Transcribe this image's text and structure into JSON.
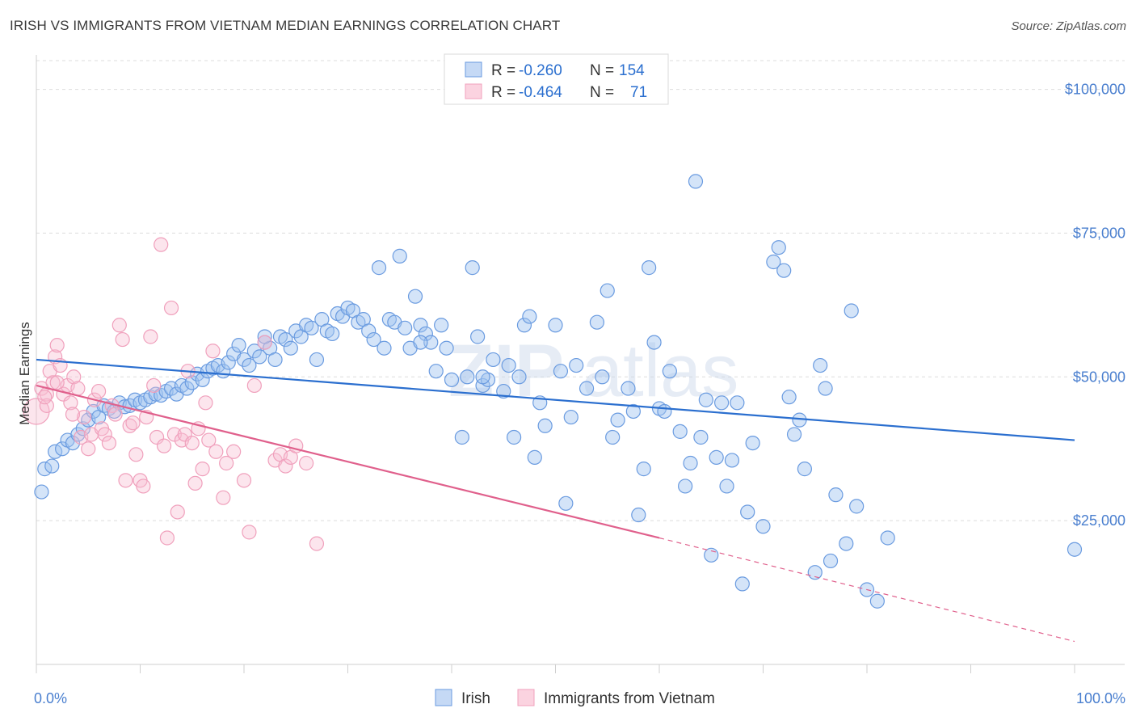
{
  "header": {
    "title": "IRISH VS IMMIGRANTS FROM VIETNAM MEDIAN EARNINGS CORRELATION CHART",
    "source": "Source: ZipAtlas.com"
  },
  "watermark": {
    "part1": "ZIP",
    "part2": "atlas"
  },
  "legend": {
    "rows": [
      {
        "r_label": "R = ",
        "r_value": "-0.260",
        "n_label": "N = ",
        "n_value": "154"
      },
      {
        "r_label": "R = ",
        "r_value": "-0.464",
        "n_label": "N = ",
        "n_value": "71"
      }
    ]
  },
  "chart_data": {
    "type": "scatter",
    "title": "IRISH VS IMMIGRANTS FROM VIETNAM MEDIAN EARNINGS CORRELATION CHART",
    "xlabel": "",
    "ylabel": "Median Earnings",
    "xlim": [
      0,
      100
    ],
    "ylim": [
      0,
      105000
    ],
    "x_tick_labels": [
      "0.0%",
      "100.0%"
    ],
    "y_ticks": [
      25000,
      50000,
      75000,
      100000
    ],
    "y_tick_labels": [
      "$25,000",
      "$50,000",
      "$75,000",
      "$100,000"
    ],
    "grid": true,
    "legend_position": "top-center",
    "colors": {
      "irish": "#6a9be0",
      "irish_line": "#2b6fcf",
      "vietnam": "#f0a0bc",
      "vietnam_line": "#e0608c",
      "text_blue": "#2b6fcf"
    },
    "series": [
      {
        "name": "Irish",
        "R": -0.26,
        "N": 154,
        "trend": {
          "x": [
            0,
            100
          ],
          "y": [
            53000,
            39000
          ]
        },
        "points": [
          [
            0.5,
            30000
          ],
          [
            0.8,
            34000
          ],
          [
            1.5,
            34500
          ],
          [
            1.8,
            37000
          ],
          [
            2.5,
            37500
          ],
          [
            3,
            39000
          ],
          [
            3.5,
            38500
          ],
          [
            4,
            40000
          ],
          [
            4.5,
            41000
          ],
          [
            5,
            42500
          ],
          [
            5.5,
            44000
          ],
          [
            6,
            43000
          ],
          [
            6.5,
            45000
          ],
          [
            7,
            44500
          ],
          [
            7.5,
            44000
          ],
          [
            8,
            45500
          ],
          [
            8.5,
            44800
          ],
          [
            9,
            45000
          ],
          [
            9.5,
            46000
          ],
          [
            10,
            45500
          ],
          [
            10.5,
            46000
          ],
          [
            11,
            46500
          ],
          [
            11.5,
            47000
          ],
          [
            12,
            46800
          ],
          [
            12.5,
            47500
          ],
          [
            13,
            48000
          ],
          [
            13.5,
            47000
          ],
          [
            14,
            48500
          ],
          [
            14.5,
            48000
          ],
          [
            15,
            49000
          ],
          [
            15.5,
            50500
          ],
          [
            16,
            49500
          ],
          [
            16.5,
            51000
          ],
          [
            17,
            51500
          ],
          [
            17.5,
            52000
          ],
          [
            18,
            51000
          ],
          [
            18.5,
            52500
          ],
          [
            19,
            54000
          ],
          [
            19.5,
            55500
          ],
          [
            20,
            53000
          ],
          [
            20.5,
            52000
          ],
          [
            21,
            54500
          ],
          [
            21.5,
            53500
          ],
          [
            22,
            56000
          ],
          [
            22.5,
            55000
          ],
          [
            23,
            53000
          ],
          [
            23.5,
            57000
          ],
          [
            24,
            56500
          ],
          [
            24.5,
            55000
          ],
          [
            25,
            58000
          ],
          [
            25.5,
            57000
          ],
          [
            26,
            59000
          ],
          [
            26.5,
            58500
          ],
          [
            27,
            53000
          ],
          [
            27.5,
            60000
          ],
          [
            28,
            58000
          ],
          [
            28.5,
            57500
          ],
          [
            29,
            61000
          ],
          [
            29.5,
            60500
          ],
          [
            30,
            62000
          ],
          [
            30.5,
            61500
          ],
          [
            31,
            59500
          ],
          [
            31.5,
            60000
          ],
          [
            32,
            58000
          ],
          [
            32.5,
            56500
          ],
          [
            33,
            69000
          ],
          [
            33.5,
            55000
          ],
          [
            34,
            60000
          ],
          [
            34.5,
            59500
          ],
          [
            35,
            71000
          ],
          [
            35.5,
            58500
          ],
          [
            36,
            55000
          ],
          [
            36.5,
            64000
          ],
          [
            37,
            59000
          ],
          [
            37.5,
            57500
          ],
          [
            38,
            56000
          ],
          [
            38.5,
            51000
          ],
          [
            39,
            59000
          ],
          [
            39.5,
            55000
          ],
          [
            40,
            49500
          ],
          [
            41,
            39500
          ],
          [
            41.5,
            50000
          ],
          [
            42,
            69000
          ],
          [
            42.5,
            57000
          ],
          [
            43,
            48500
          ],
          [
            43.5,
            49500
          ],
          [
            44,
            53000
          ],
          [
            45,
            47500
          ],
          [
            45.5,
            52000
          ],
          [
            46,
            39500
          ],
          [
            46.5,
            50000
          ],
          [
            47,
            59000
          ],
          [
            47.5,
            60500
          ],
          [
            48,
            36000
          ],
          [
            48.5,
            45500
          ],
          [
            49,
            41500
          ],
          [
            50,
            59000
          ],
          [
            50.5,
            51000
          ],
          [
            51,
            28000
          ],
          [
            51.5,
            43000
          ],
          [
            52,
            52000
          ],
          [
            53,
            48000
          ],
          [
            54,
            59500
          ],
          [
            54.5,
            50000
          ],
          [
            55,
            65000
          ],
          [
            55.5,
            39500
          ],
          [
            56,
            42500
          ],
          [
            57,
            48000
          ],
          [
            57.5,
            44000
          ],
          [
            58,
            26000
          ],
          [
            58.5,
            34000
          ],
          [
            59,
            69000
          ],
          [
            59.5,
            56000
          ],
          [
            60,
            44500
          ],
          [
            60.5,
            44000
          ],
          [
            61,
            51000
          ],
          [
            62,
            40500
          ],
          [
            62.5,
            31000
          ],
          [
            63,
            35000
          ],
          [
            63.5,
            84000
          ],
          [
            64,
            39500
          ],
          [
            64.5,
            46000
          ],
          [
            65,
            19000
          ],
          [
            65.5,
            36000
          ],
          [
            66,
            45500
          ],
          [
            66.5,
            31000
          ],
          [
            67,
            35500
          ],
          [
            67.5,
            45500
          ],
          [
            68,
            14000
          ],
          [
            68.5,
            26500
          ],
          [
            69,
            38500
          ],
          [
            70,
            24000
          ],
          [
            71,
            70000
          ],
          [
            71.5,
            72500
          ],
          [
            72,
            68500
          ],
          [
            72.5,
            46500
          ],
          [
            73,
            40000
          ],
          [
            73.5,
            42500
          ],
          [
            74,
            34000
          ],
          [
            75,
            16000
          ],
          [
            75.5,
            52000
          ],
          [
            76,
            48000
          ],
          [
            76.5,
            18000
          ],
          [
            77,
            29500
          ],
          [
            78,
            21000
          ],
          [
            78.5,
            61500
          ],
          [
            79,
            27500
          ],
          [
            80,
            13000
          ],
          [
            81,
            11000
          ],
          [
            82,
            22000
          ],
          [
            100,
            20000
          ],
          [
            43,
            50000
          ],
          [
            37,
            56000
          ],
          [
            22,
            57000
          ]
        ]
      },
      {
        "name": "Immigrants from Vietnam",
        "R": -0.464,
        "N": 71,
        "trend": {
          "x": [
            0,
            60
          ],
          "y": [
            48500,
            22000
          ],
          "dashed_to": [
            100,
            4000
          ]
        },
        "points": [
          [
            0,
            44000
          ],
          [
            0.5,
            48000
          ],
          [
            1,
            47000
          ],
          [
            1.3,
            51000
          ],
          [
            1.6,
            49000
          ],
          [
            1.8,
            53500
          ],
          [
            2,
            55500
          ],
          [
            2.3,
            52000
          ],
          [
            2.6,
            47000
          ],
          [
            3,
            48500
          ],
          [
            3.3,
            45500
          ],
          [
            3.6,
            50000
          ],
          [
            4,
            48000
          ],
          [
            4.3,
            39500
          ],
          [
            4.6,
            43000
          ],
          [
            5,
            37500
          ],
          [
            5.3,
            40000
          ],
          [
            5.6,
            46000
          ],
          [
            6,
            47500
          ],
          [
            6.3,
            41000
          ],
          [
            6.6,
            40000
          ],
          [
            7,
            38500
          ],
          [
            7.3,
            45000
          ],
          [
            7.6,
            43500
          ],
          [
            8,
            59000
          ],
          [
            8.3,
            56500
          ],
          [
            8.6,
            32000
          ],
          [
            9,
            41500
          ],
          [
            9.3,
            42000
          ],
          [
            9.6,
            36500
          ],
          [
            10,
            32000
          ],
          [
            10.3,
            31000
          ],
          [
            10.6,
            43000
          ],
          [
            11,
            57000
          ],
          [
            11.3,
            48500
          ],
          [
            11.6,
            39500
          ],
          [
            12,
            73000
          ],
          [
            12.3,
            38000
          ],
          [
            12.6,
            22000
          ],
          [
            13,
            62000
          ],
          [
            13.3,
            40000
          ],
          [
            13.6,
            26500
          ],
          [
            14,
            39000
          ],
          [
            14.3,
            40000
          ],
          [
            14.6,
            51000
          ],
          [
            15,
            38500
          ],
          [
            15.3,
            31500
          ],
          [
            15.6,
            41000
          ],
          [
            16,
            34000
          ],
          [
            16.3,
            45500
          ],
          [
            16.6,
            39000
          ],
          [
            17,
            54500
          ],
          [
            17.3,
            37000
          ],
          [
            18,
            29000
          ],
          [
            18.3,
            35000
          ],
          [
            19,
            37000
          ],
          [
            20,
            32000
          ],
          [
            20.5,
            23000
          ],
          [
            21,
            48500
          ],
          [
            22,
            56000
          ],
          [
            23,
            35500
          ],
          [
            23.5,
            36500
          ],
          [
            24,
            34500
          ],
          [
            24.5,
            36000
          ],
          [
            25,
            38000
          ],
          [
            26,
            35000
          ],
          [
            27,
            21000
          ],
          [
            1,
            45000
          ],
          [
            2,
            49000
          ],
          [
            0.8,
            46500
          ],
          [
            3.5,
            43500
          ]
        ]
      }
    ]
  },
  "bottom_legend": [
    "Irish",
    "Immigrants from Vietnam"
  ]
}
